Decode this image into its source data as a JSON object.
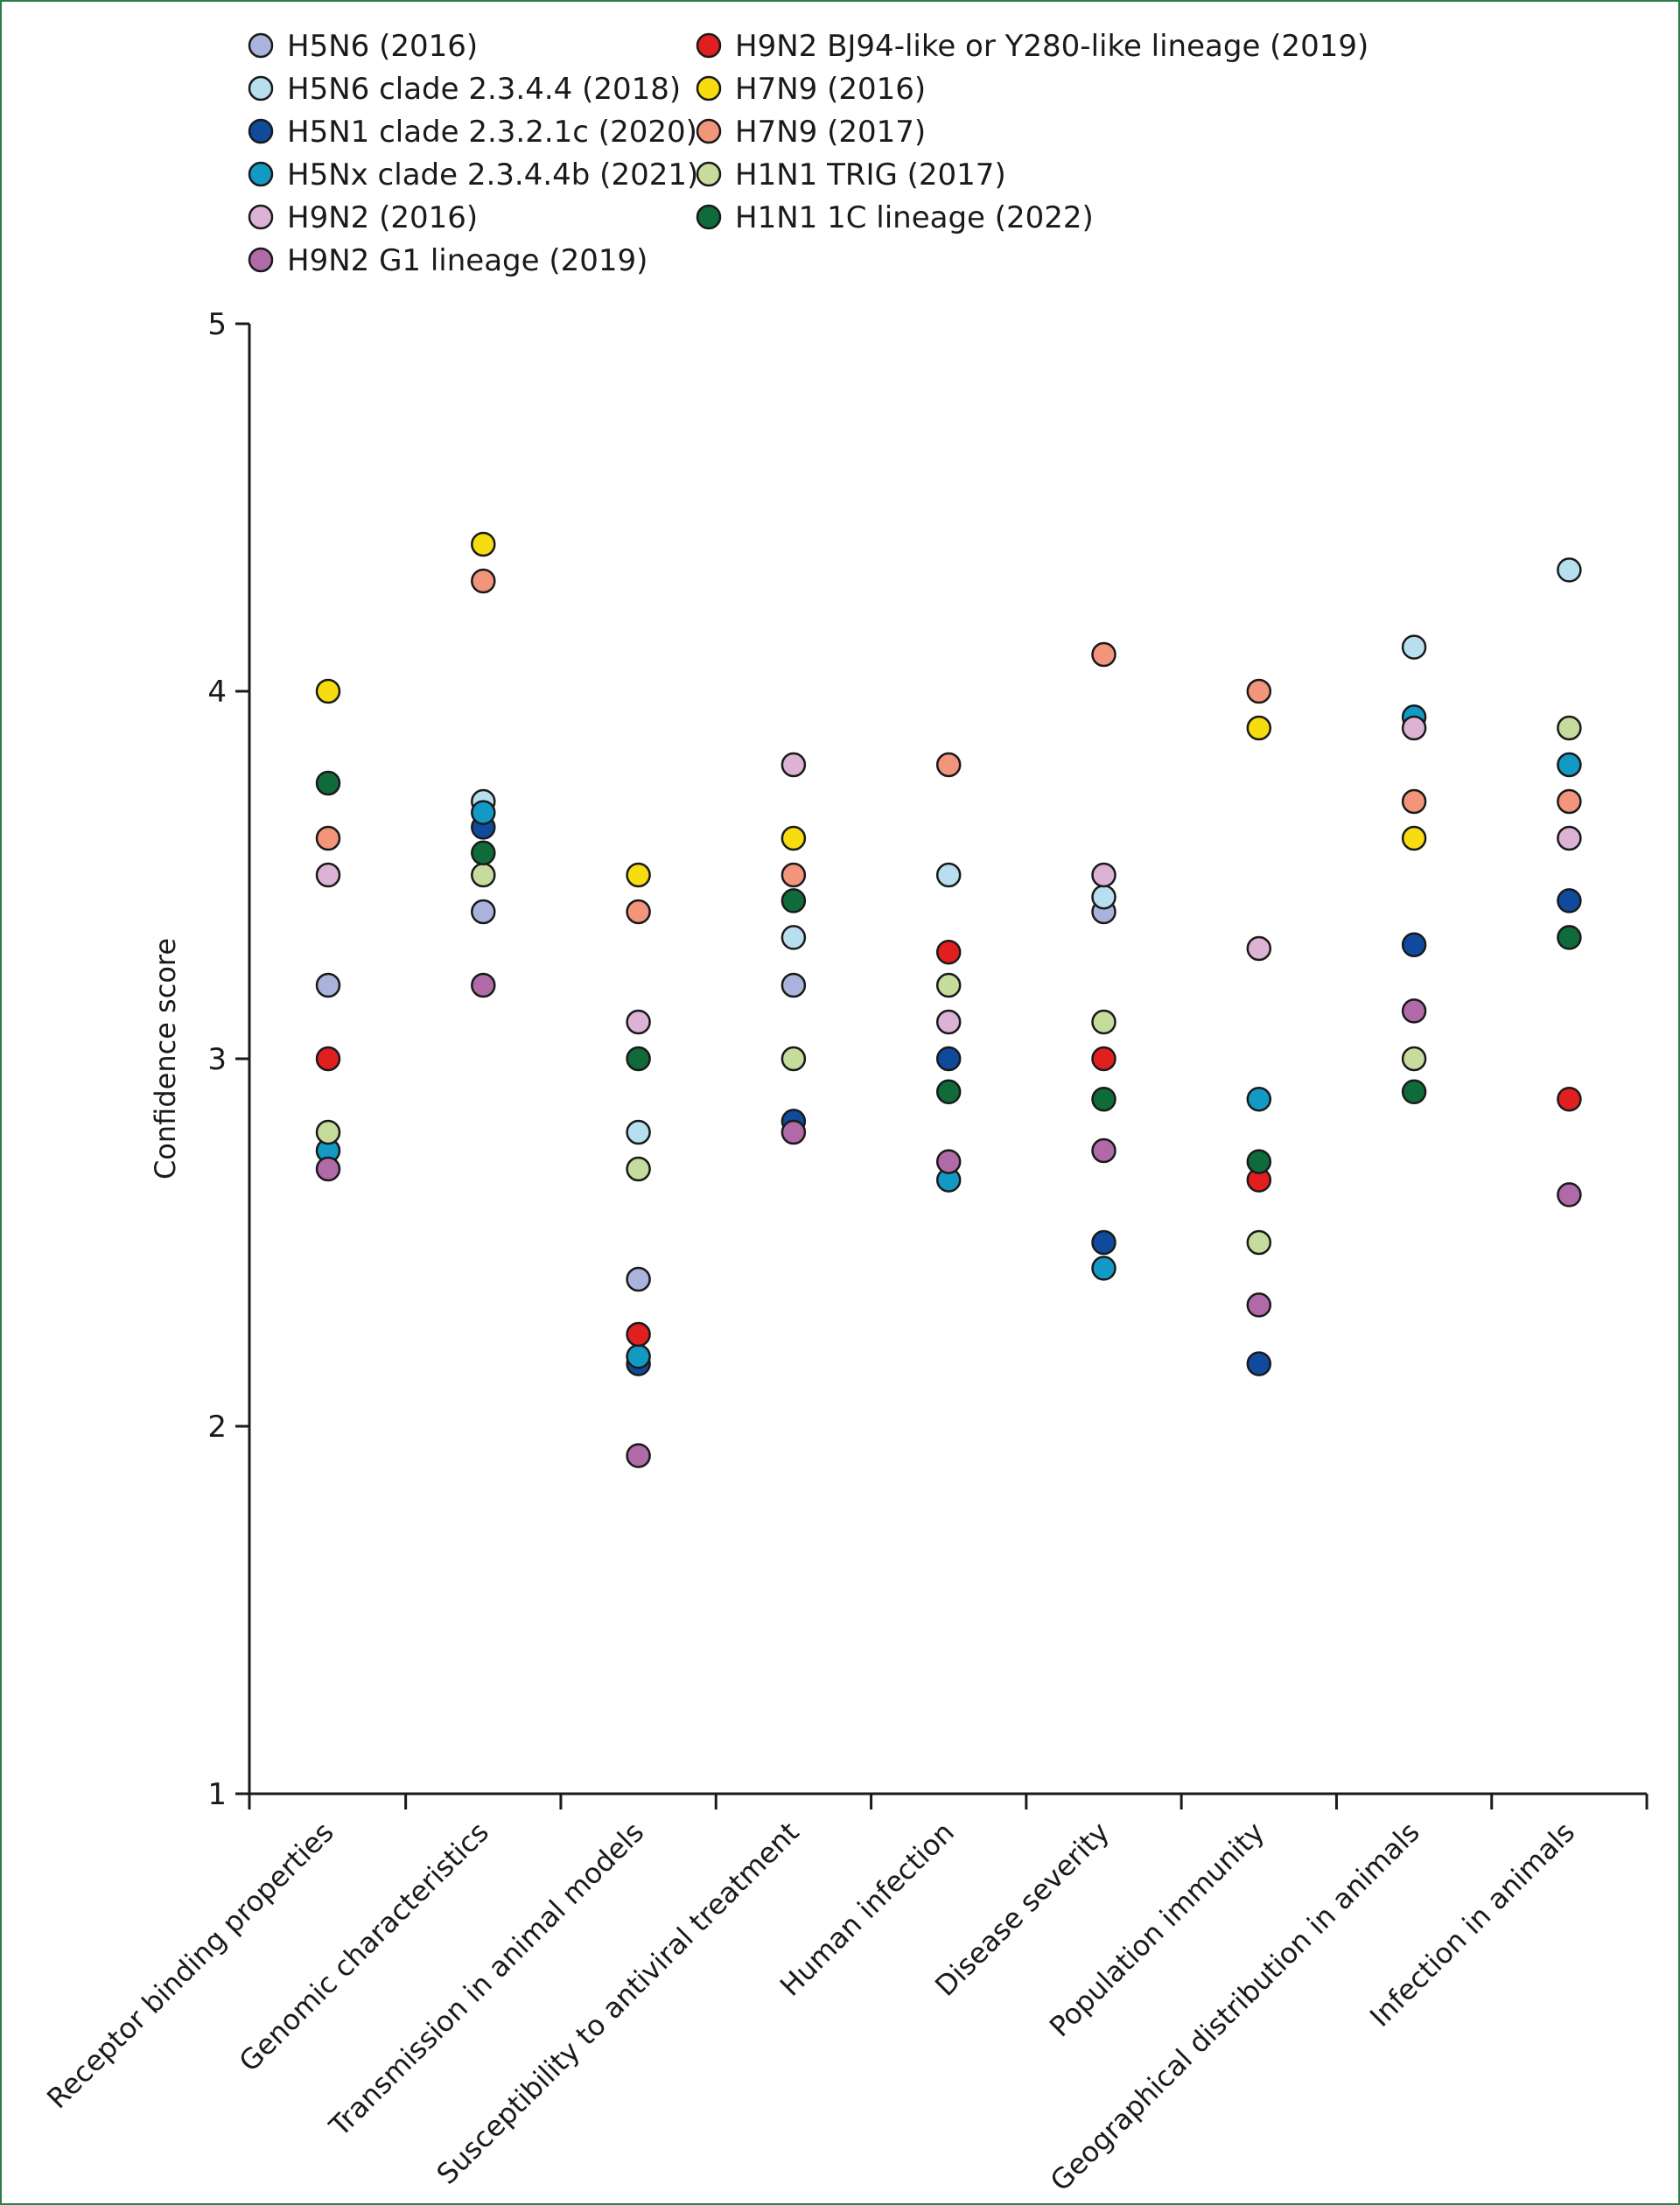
{
  "chart_data": {
    "type": "scatter",
    "title": "",
    "xlabel": "",
    "ylabel": "Confidence score",
    "ylim": [
      1,
      5
    ],
    "yticks": [
      1,
      2,
      3,
      4,
      5
    ],
    "grid": false,
    "legend_position": "top-left",
    "categories": [
      "Receptor binding properties",
      "Genomic characteristics",
      "Transmission in animal models",
      "Susceptibility to antiviral treatment",
      "Human infection",
      "Disease severity",
      "Population immunity",
      "Geographical distribution in animals",
      "Infection in animals"
    ],
    "series": [
      {
        "name": "H5N6 (2016)",
        "color": "#a9b3dc",
        "values": [
          3.2,
          3.4,
          2.4,
          3.2,
          null,
          3.4,
          null,
          null,
          null
        ]
      },
      {
        "name": "H5N6 clade 2.3.4.4 (2018)",
        "color": "#b7dff0",
        "values": [
          null,
          3.7,
          2.8,
          3.33,
          3.5,
          3.44,
          null,
          4.12,
          4.33
        ]
      },
      {
        "name": "H5N1 clade 2.3.2.1c (2020)",
        "color": "#0f4a9c",
        "values": [
          null,
          3.63,
          2.17,
          2.83,
          3.0,
          2.5,
          2.17,
          3.31,
          3.43
        ]
      },
      {
        "name": "H5Nx clade 2.3.4.4b (2021)",
        "color": "#1299c4",
        "values": [
          2.75,
          3.67,
          2.19,
          null,
          2.67,
          2.43,
          2.89,
          3.93,
          3.8
        ]
      },
      {
        "name": "H9N2 (2016)",
        "color": "#ddb3d5",
        "values": [
          3.5,
          null,
          3.1,
          3.8,
          3.1,
          3.5,
          3.3,
          3.9,
          3.6
        ]
      },
      {
        "name": "H9N2 G1 lineage (2019)",
        "color": "#b06aa8",
        "values": [
          2.7,
          3.2,
          1.92,
          2.8,
          2.72,
          2.75,
          2.33,
          3.13,
          2.63
        ]
      },
      {
        "name": "H9N2 BJ94-like or Y280-like lineage (2019)",
        "color": "#e21f1f",
        "values": [
          3.0,
          null,
          2.25,
          null,
          3.29,
          3.0,
          2.67,
          null,
          2.89
        ]
      },
      {
        "name": "H7N9 (2016)",
        "color": "#f7dc10",
        "values": [
          4.0,
          4.4,
          3.5,
          3.6,
          null,
          null,
          3.9,
          3.6,
          null
        ]
      },
      {
        "name": "H7N9 (2017)",
        "color": "#f2957a",
        "values": [
          3.6,
          4.3,
          3.4,
          3.5,
          3.8,
          4.1,
          4.0,
          3.7,
          3.7
        ]
      },
      {
        "name": "H1N1 TRIG (2017)",
        "color": "#c5dc9c",
        "values": [
          2.8,
          3.5,
          2.7,
          3.0,
          3.2,
          3.1,
          2.5,
          3.0,
          3.9
        ]
      },
      {
        "name": "H1N1 1C lineage (2022)",
        "color": "#0f6b3a",
        "values": [
          3.75,
          3.56,
          3.0,
          3.43,
          2.91,
          2.89,
          2.72,
          2.91,
          3.33
        ]
      }
    ]
  }
}
